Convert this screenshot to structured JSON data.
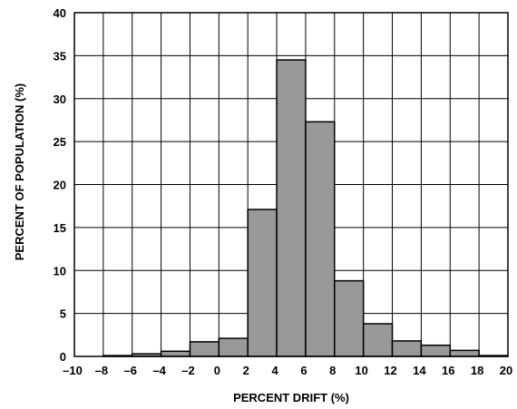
{
  "chart_data": {
    "type": "bar",
    "xlabel": "PERCENT DRIFT (%)",
    "ylabel": "PERCENT OF POPULATION (%)",
    "xlim": [
      -10,
      20
    ],
    "ylim": [
      0,
      40
    ],
    "bin_width": 2,
    "x_ticks": [
      "–10",
      "–8",
      "–6",
      "–4",
      "–2",
      "0",
      "2",
      "4",
      "6",
      "8",
      "10",
      "12",
      "14",
      "16",
      "18",
      "20"
    ],
    "y_ticks": [
      "0",
      "5",
      "10",
      "15",
      "20",
      "25",
      "30",
      "35",
      "40"
    ],
    "grid": true,
    "bars": [
      {
        "bin_start": -10,
        "value": 0
      },
      {
        "bin_start": -8,
        "value": 0.1
      },
      {
        "bin_start": -6,
        "value": 0.3
      },
      {
        "bin_start": -4,
        "value": 0.6
      },
      {
        "bin_start": -2,
        "value": 1.7
      },
      {
        "bin_start": 0,
        "value": 2.1
      },
      {
        "bin_start": 2,
        "value": 17.1
      },
      {
        "bin_start": 4,
        "value": 34.5
      },
      {
        "bin_start": 6,
        "value": 27.3
      },
      {
        "bin_start": 8,
        "value": 8.8
      },
      {
        "bin_start": 10,
        "value": 3.8
      },
      {
        "bin_start": 12,
        "value": 1.8
      },
      {
        "bin_start": 14,
        "value": 1.3
      },
      {
        "bin_start": 16,
        "value": 0.7
      },
      {
        "bin_start": 18,
        "value": 0.1
      }
    ],
    "bar_color": "#999999"
  }
}
